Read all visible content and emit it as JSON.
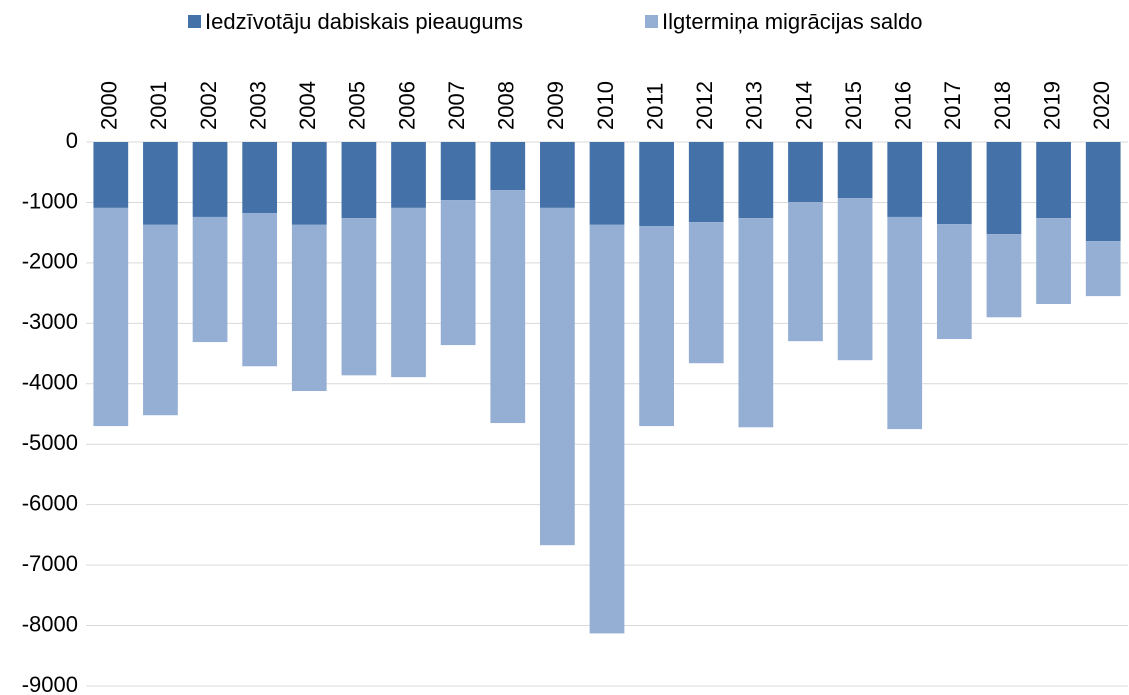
{
  "chart_data": {
    "type": "bar",
    "stacked": true,
    "categories": [
      "2000",
      "2001",
      "2002",
      "2003",
      "2004",
      "2005",
      "2006",
      "2007",
      "2008",
      "2009",
      "2010",
      "2011",
      "2012",
      "2013",
      "2014",
      "2015",
      "2016",
      "2017",
      "2018",
      "2019",
      "2020"
    ],
    "series": [
      {
        "name": "Iedzīvotāju dabiskais pieaugums",
        "color": "#4472a8",
        "values": [
          -1090,
          -1370,
          -1240,
          -1175,
          -1370,
          -1260,
          -1090,
          -960,
          -795,
          -1090,
          -1370,
          -1390,
          -1325,
          -1260,
          -995,
          -930,
          -1240,
          -1360,
          -1525,
          -1260,
          -1640
        ]
      },
      {
        "name": "Ilgtermiņa migrācijas saldo",
        "color": "#95aed4",
        "values": [
          -3610,
          -3150,
          -2070,
          -2535,
          -2750,
          -2600,
          -2800,
          -2400,
          -3855,
          -5580,
          -6760,
          -3310,
          -2335,
          -3460,
          -2300,
          -2680,
          -3510,
          -1900,
          -1375,
          -1420,
          -910
        ]
      }
    ],
    "ylim": [
      -9000,
      0
    ],
    "yticks": [
      0,
      -1000,
      -2000,
      -3000,
      -4000,
      -5000,
      -6000,
      -7000,
      -8000,
      -9000
    ],
    "grid": true,
    "legend": "top"
  }
}
